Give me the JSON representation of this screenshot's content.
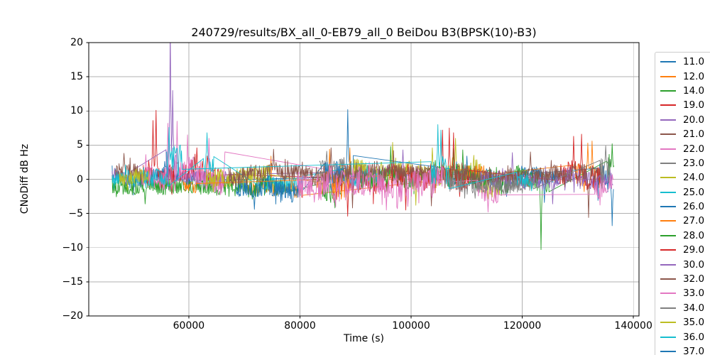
{
  "title": "240729/results/BX_all_0-EB79_all_0 BeiDou B3(BPSK(10)-B3)",
  "axes": {
    "xlabel": "Time (s)",
    "ylabel": "CNoDiff dB Hz",
    "xlim": [
      42000,
      141000
    ],
    "ylim": [
      -20,
      20
    ],
    "xticks": [
      {
        "value": 60000,
        "label": "60000"
      },
      {
        "value": 80000,
        "label": "80000"
      },
      {
        "value": 100000,
        "label": "100000"
      },
      {
        "value": 120000,
        "label": "120000"
      },
      {
        "value": 140000,
        "label": "140000"
      }
    ],
    "yticks": [
      {
        "value": 20,
        "label": "20"
      },
      {
        "value": 15,
        "label": "15"
      },
      {
        "value": 10,
        "label": "10"
      },
      {
        "value": 5,
        "label": "5"
      },
      {
        "value": 0,
        "label": "0"
      },
      {
        "value": -5,
        "label": "−5"
      },
      {
        "value": -10,
        "label": "−10"
      },
      {
        "value": -15,
        "label": "−15"
      },
      {
        "value": -20,
        "label": "−20"
      }
    ],
    "grid_color": "#b0b0b0",
    "spine_color": "#000000"
  },
  "chart_data": {
    "type": "line",
    "title": "240729/results/BX_all_0-EB79_all_0 BeiDou B3(BPSK(10)-B3)",
    "xlabel": "Time (s)",
    "ylabel": "CNoDiff dB Hz",
    "xlim": [
      42000,
      141000
    ],
    "ylim": [
      -20,
      20
    ],
    "grid": true,
    "legend_position": "outside right",
    "series": [
      {
        "name": "11.0",
        "color": "#1f77b4",
        "seed": 11,
        "segments": [
          {
            "t0": 46200,
            "t1": 61500,
            "mean": 0.4,
            "amp": 0.9
          },
          {
            "t0": 108500,
            "t1": 126500,
            "mean": 0.2,
            "amp": 1.1
          }
        ],
        "spikes": [
          {
            "t": 110000,
            "v": 3.4
          },
          {
            "t": 124000,
            "v": -3.4
          }
        ]
      },
      {
        "name": "12.0",
        "color": "#ff7f0e",
        "seed": 12,
        "segments": [
          {
            "t0": 70500,
            "t1": 80500,
            "mean": -1.3,
            "amp": 0.8
          },
          {
            "t0": 129500,
            "t1": 134200,
            "mean": 0.8,
            "amp": 1.5
          }
        ],
        "spikes": [
          {
            "t": 74800,
            "v": 3.4
          },
          {
            "t": 131800,
            "v": 5.3
          },
          {
            "t": 132600,
            "v": 5.6
          }
        ]
      },
      {
        "name": "14.0",
        "color": "#2ca02c",
        "seed": 14,
        "segments": [
          {
            "t0": 46200,
            "t1": 77800,
            "mean": -1.0,
            "amp": 1.1
          },
          {
            "t0": 84000,
            "t1": 87500,
            "mean": -1.5,
            "amp": 1.2
          }
        ],
        "spikes": [
          {
            "t": 52200,
            "v": -3.6
          },
          {
            "t": 61000,
            "v": 3.2
          },
          {
            "t": 86300,
            "v": -4.2
          }
        ]
      },
      {
        "name": "19.0",
        "color": "#d62728",
        "seed": 19,
        "segments": [
          {
            "t0": 51800,
            "t1": 66500,
            "mean": 0.7,
            "amp": 1.4
          },
          {
            "t0": 86500,
            "t1": 96500,
            "mean": -0.4,
            "amp": 1.3
          }
        ],
        "spikes": [
          {
            "t": 53600,
            "v": 8.6
          },
          {
            "t": 54100,
            "v": 10.1
          },
          {
            "t": 61500,
            "v": 4.6
          },
          {
            "t": 88600,
            "v": -5.4
          }
        ]
      },
      {
        "name": "20.0",
        "color": "#9467bd",
        "seed": 20,
        "segments": [
          {
            "t0": 46200,
            "t1": 49500,
            "mean": 0.5,
            "amp": 0.8
          },
          {
            "t0": 55900,
            "t1": 58200,
            "mean": 2.0,
            "amp": 2.2
          },
          {
            "t0": 59500,
            "t1": 67000,
            "mean": 0.3,
            "amp": 0.9
          },
          {
            "t0": 88000,
            "t1": 100500,
            "mean": 0.4,
            "amp": 1.0
          }
        ],
        "spikes": [
          {
            "t": 56700,
            "v": 22.5
          },
          {
            "t": 57100,
            "v": 13.0
          },
          {
            "t": 98500,
            "v": 4.3
          }
        ]
      },
      {
        "name": "21.0",
        "color": "#8c564b",
        "seed": 21,
        "segments": [
          {
            "t0": 46800,
            "t1": 53500,
            "mean": 1.2,
            "amp": 1.0
          }
        ],
        "spikes": [
          {
            "t": 48300,
            "v": 3.8
          }
        ]
      },
      {
        "name": "22.0",
        "color": "#e377c2",
        "seed": 22,
        "segments": [
          {
            "t0": 51500,
            "t1": 66500,
            "mean": 0.3,
            "amp": 1.6
          },
          {
            "t0": 86000,
            "t1": 92000,
            "mean": 0.5,
            "amp": 1.2
          }
        ],
        "spikes": [
          {
            "t": 56200,
            "v": 8.2
          },
          {
            "t": 57900,
            "v": 8.5
          },
          {
            "t": 59800,
            "v": 6.5
          },
          {
            "t": 63600,
            "v": 6.0
          },
          {
            "t": 66450,
            "v": 4.0
          }
        ]
      },
      {
        "name": "23.0",
        "color": "#7f7f7f",
        "seed": 23,
        "segments": [
          {
            "t0": 83500,
            "t1": 89000,
            "mean": 1.6,
            "amp": 1.1
          },
          {
            "t0": 108500,
            "t1": 111500,
            "mean": 0.8,
            "amp": 0.9
          }
        ],
        "spikes": [
          {
            "t": 84800,
            "v": 4.1
          }
        ]
      },
      {
        "name": "24.0",
        "color": "#bcbd22",
        "seed": 24,
        "segments": [
          {
            "t0": 63000,
            "t1": 74500,
            "mean": 0.4,
            "amp": 1.0
          },
          {
            "t0": 87000,
            "t1": 112500,
            "mean": 0.9,
            "amp": 1.3
          },
          {
            "t0": 112500,
            "t1": 116000,
            "mean": -1.5,
            "amp": 1.0
          }
        ],
        "spikes": [
          {
            "t": 96700,
            "v": 5.4
          },
          {
            "t": 100800,
            "v": -3.8
          },
          {
            "t": 103800,
            "v": 4.6
          },
          {
            "t": 108000,
            "v": 6.0
          }
        ]
      },
      {
        "name": "25.0",
        "color": "#17becf",
        "seed": 25,
        "segments": [
          {
            "t0": 46200,
            "t1": 56500,
            "mean": 0.0,
            "amp": 0.9
          },
          {
            "t0": 62500,
            "t1": 64500,
            "mean": 2.5,
            "amp": 1.2
          },
          {
            "t0": 73500,
            "t1": 80500,
            "mean": -0.6,
            "amp": 0.9
          },
          {
            "t0": 87500,
            "t1": 94500,
            "mean": 0.3,
            "amp": 1.0
          }
        ],
        "spikes": [
          {
            "t": 63300,
            "v": 6.8
          }
        ]
      },
      {
        "name": "26.0",
        "color": "#1f77b4",
        "seed": 26,
        "segments": [
          {
            "t0": 68500,
            "t1": 80500,
            "mean": -1.2,
            "amp": 1.2
          },
          {
            "t0": 84500,
            "t1": 89600,
            "mean": 1.2,
            "amp": 1.6
          },
          {
            "t0": 107500,
            "t1": 112500,
            "mean": 0.8,
            "amp": 1.0
          },
          {
            "t0": 133500,
            "t1": 136400,
            "mean": -0.5,
            "amp": 1.8
          }
        ],
        "spikes": [
          {
            "t": 71800,
            "v": -4.4
          },
          {
            "t": 88600,
            "v": 10.2
          },
          {
            "t": 136200,
            "v": -6.8
          }
        ]
      },
      {
        "name": "27.0",
        "color": "#ff7f0e",
        "seed": 27,
        "segments": [
          {
            "t0": 59000,
            "t1": 61500,
            "mean": -1.0,
            "amp": 0.7
          },
          {
            "t0": 83000,
            "t1": 89200,
            "mean": -0.6,
            "amp": 1.5
          },
          {
            "t0": 110000,
            "t1": 113500,
            "mean": 0.9,
            "amp": 1.0
          }
        ],
        "spikes": [
          {
            "t": 85300,
            "v": 4.4
          },
          {
            "t": 89000,
            "v": 4.6
          }
        ]
      },
      {
        "name": "28.0",
        "color": "#2ca02c",
        "seed": 28,
        "segments": [
          {
            "t0": 90500,
            "t1": 124800,
            "mean": 0.0,
            "amp": 1.2
          },
          {
            "t0": 135200,
            "t1": 136500,
            "mean": 1.2,
            "amp": 1.5
          }
        ],
        "spikes": [
          {
            "t": 96300,
            "v": 4.8
          },
          {
            "t": 107600,
            "v": 4.5
          },
          {
            "t": 109300,
            "v": 4.3
          },
          {
            "t": 123400,
            "v": -10.3
          },
          {
            "t": 136200,
            "v": 5.2
          }
        ]
      },
      {
        "name": "29.0",
        "color": "#d62728",
        "seed": 29,
        "segments": [
          {
            "t0": 96500,
            "t1": 110500,
            "mean": 0.4,
            "amp": 1.5
          },
          {
            "t0": 126500,
            "t1": 134500,
            "mean": 0.6,
            "amp": 1.5
          }
        ],
        "spikes": [
          {
            "t": 99000,
            "v": -4.5
          },
          {
            "t": 105600,
            "v": 7.2
          },
          {
            "t": 106900,
            "v": 7.5
          },
          {
            "t": 107600,
            "v": 6.8
          },
          {
            "t": 129200,
            "v": 6.3
          },
          {
            "t": 130700,
            "v": 6.6
          }
        ]
      },
      {
        "name": "30.0",
        "color": "#9467bd",
        "seed": 30,
        "segments": [
          {
            "t0": 112500,
            "t1": 136350,
            "mean": 0.1,
            "amp": 1.1
          }
        ],
        "spikes": [
          {
            "t": 118200,
            "v": 3.9
          },
          {
            "t": 125500,
            "v": -3.6
          }
        ]
      },
      {
        "name": "32.0",
        "color": "#8c564b",
        "seed": 32,
        "segments": [
          {
            "t0": 67000,
            "t1": 133800,
            "mean": 0.8,
            "amp": 1.1
          }
        ],
        "spikes": [
          {
            "t": 75300,
            "v": 4.4
          },
          {
            "t": 85600,
            "v": 4.6
          },
          {
            "t": 89400,
            "v": -4.2
          },
          {
            "t": 96800,
            "v": 4.2
          },
          {
            "t": 103600,
            "v": -3.9
          },
          {
            "t": 121500,
            "v": 4.0
          },
          {
            "t": 131900,
            "v": -5.6
          }
        ]
      },
      {
        "name": "33.0",
        "color": "#e377c2",
        "seed": 33,
        "segments": [
          {
            "t0": 79500,
            "t1": 106000,
            "mean": 0.0,
            "amp": 1.7
          },
          {
            "t0": 112000,
            "t1": 115800,
            "mean": -1.5,
            "amp": 1.3
          },
          {
            "t0": 133000,
            "t1": 136400,
            "mean": -1.2,
            "amp": 1.2
          }
        ],
        "spikes": [
          {
            "t": 95500,
            "v": -4.5
          },
          {
            "t": 113900,
            "v": -4.8
          }
        ]
      },
      {
        "name": "34.0",
        "color": "#7f7f7f",
        "seed": 34,
        "segments": [
          {
            "t0": 106000,
            "t1": 122000,
            "mean": -0.7,
            "amp": 0.9
          },
          {
            "t0": 134000,
            "t1": 135800,
            "mean": 1.5,
            "amp": 1.8
          }
        ],
        "spikes": [
          {
            "t": 135000,
            "v": 4.9
          }
        ]
      },
      {
        "name": "35.0",
        "color": "#bcbd22",
        "seed": 35,
        "segments": [
          {
            "t0": 47500,
            "t1": 52800,
            "mean": 0.3,
            "amp": 0.9
          }
        ],
        "spikes": []
      },
      {
        "name": "36.0",
        "color": "#17becf",
        "seed": 36,
        "segments": [
          {
            "t0": 56000,
            "t1": 58800,
            "mean": 2.0,
            "amp": 2.0
          },
          {
            "t0": 103600,
            "t1": 106800,
            "mean": 1.0,
            "amp": 2.0
          },
          {
            "t0": 119000,
            "t1": 121800,
            "mean": -0.3,
            "amp": 0.9
          }
        ],
        "spikes": [
          {
            "t": 56400,
            "v": 7.6
          },
          {
            "t": 104800,
            "v": 8.0
          },
          {
            "t": 105400,
            "v": 7.2
          }
        ]
      },
      {
        "name": "37.0",
        "color": "#1f77b4",
        "seed": 37,
        "segments": [],
        "spikes": []
      }
    ]
  }
}
